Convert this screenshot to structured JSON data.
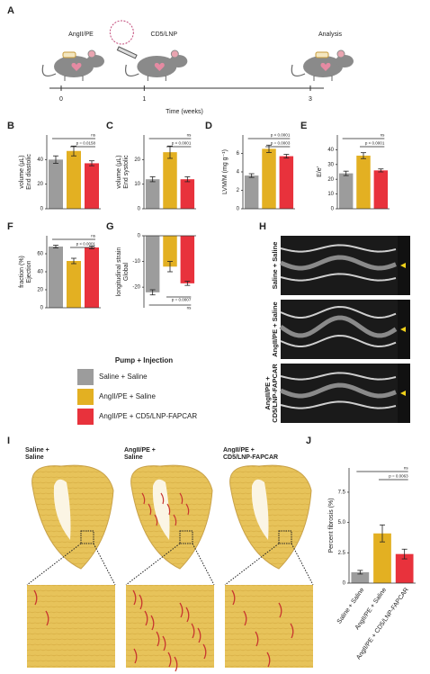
{
  "timeline": {
    "label": "A",
    "events": [
      "AngII/PE",
      "CD5/LNP",
      "Analysis"
    ],
    "xlim": [
      0,
      3
    ],
    "ticks": [
      0,
      1,
      3
    ],
    "xlabel": "Time (weeks)"
  },
  "legend": {
    "title": "Pump + Injection",
    "items": [
      {
        "name": "Saline + Saline",
        "color": "#9c9c9c"
      },
      {
        "name": "AngII/PE + Saline",
        "color": "#e3b022"
      },
      {
        "name": "AngII/PE + CD5/LNP-FAPCAR",
        "color": "#e8323c"
      }
    ]
  },
  "chart_data": [
    {
      "type": "bar",
      "label": "B",
      "ylabel": [
        "End diastolic",
        "volume (µL)"
      ],
      "categories": [
        null,
        null,
        null
      ],
      "values": [
        40,
        47,
        37
      ],
      "errors": [
        3,
        4,
        2
      ],
      "ylim": [
        0,
        60
      ],
      "yticks": [
        0,
        20,
        40
      ],
      "annotations": [
        "ns",
        "p = 0.0158"
      ]
    },
    {
      "type": "bar",
      "label": "C",
      "ylabel": [
        "End systolic",
        "volume (µL)"
      ],
      "categories": [
        null,
        null,
        null
      ],
      "values": [
        12,
        23,
        12
      ],
      "errors": [
        1,
        2.5,
        1
      ],
      "ylim": [
        0,
        30
      ],
      "yticks": [
        0,
        10,
        20
      ],
      "annotations": [
        "ns",
        "p < 0.0001"
      ]
    },
    {
      "type": "bar",
      "label": "D",
      "ylabel": [
        "LVM/M (mg g⁻¹)"
      ],
      "categories": [
        null,
        null,
        null
      ],
      "values": [
        3.6,
        6.5,
        5.7
      ],
      "errors": [
        0.2,
        0.4,
        0.2
      ],
      "ylim": [
        0,
        8
      ],
      "yticks": [
        0,
        2,
        4,
        6
      ],
      "annotations": [
        "p < 0.0001",
        "p = 0.0003"
      ]
    },
    {
      "type": "bar",
      "label": "E",
      "ylabel": [
        "E/e′"
      ],
      "categories": [
        null,
        null,
        null
      ],
      "values": [
        24,
        36,
        26
      ],
      "errors": [
        1.5,
        2,
        1
      ],
      "ylim": [
        0,
        50
      ],
      "yticks": [
        0,
        10,
        20,
        30,
        40
      ],
      "annotations": [
        "ns",
        "p < 0.0001"
      ]
    },
    {
      "type": "bar",
      "label": "F",
      "ylabel": [
        "Ejection",
        "fraction (%)"
      ],
      "categories": [
        null,
        null,
        null
      ],
      "values": [
        68,
        52,
        67
      ],
      "errors": [
        1.5,
        3,
        1.5
      ],
      "ylim": [
        0,
        80
      ],
      "yticks": [
        0,
        20,
        40,
        60
      ],
      "annotations": [
        "ns",
        "p < 0.0001"
      ]
    },
    {
      "type": "bar",
      "label": "G",
      "ylabel": [
        "Global",
        "longitudinal strain"
      ],
      "categories": [
        null,
        null,
        null
      ],
      "values": [
        -22,
        -12,
        -18.5
      ],
      "errors": [
        1,
        2,
        0.8
      ],
      "ylim": [
        -28,
        0
      ],
      "yticks": [
        -20,
        -10,
        0
      ],
      "annotations": [
        "ns",
        "p = 0.0007"
      ]
    },
    {
      "type": "bar",
      "label": "J",
      "ylabel": [
        "Percent fibrosis (%)"
      ],
      "categories": [
        "Saline + Saline",
        "AngII/PE + Saline",
        "AngII/PE + CD5/LNP-FAPCAR"
      ],
      "values": [
        0.9,
        4.1,
        2.4
      ],
      "errors": [
        0.15,
        0.7,
        0.4
      ],
      "ylim": [
        0,
        9.5
      ],
      "yticks": [
        0,
        2.5,
        {
          "value": 5,
          "label": "5.0"
        },
        7.5
      ],
      "annotations": [
        "ns",
        "p = 0.0063"
      ]
    }
  ],
  "echo": {
    "label": "H",
    "rows": [
      [
        "Saline + Saline"
      ],
      [
        "AngII/PE + Saline"
      ],
      [
        "AngII/PE +",
        "CD5/LNP-FAPCAR"
      ]
    ]
  },
  "histology": {
    "label": "I",
    "rows": [
      [
        "Saline +",
        "Saline"
      ],
      [
        "AngII/PE +",
        "Saline"
      ],
      [
        "AngII/PE +",
        "CD5/LNP-FAPCAR"
      ]
    ]
  }
}
